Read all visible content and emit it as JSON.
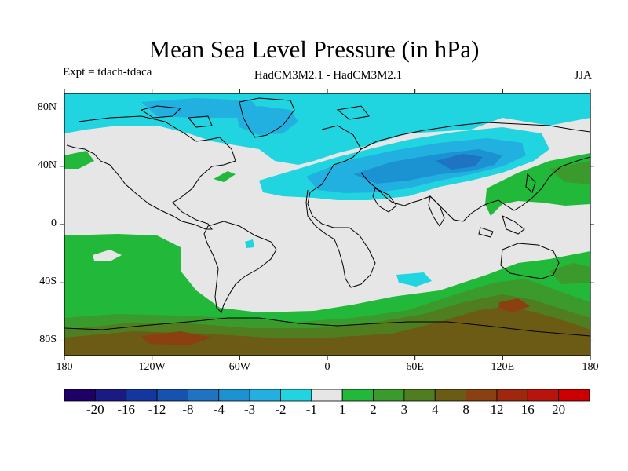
{
  "title": "Mean Sea Level Pressure (in hPa)",
  "experiment": "Expt = tdach-tdaca",
  "model": "HadCM3M2.1 - HadCM3M2.1",
  "season": "JJA",
  "lat_labels": [
    "80N",
    "40N",
    "0",
    "40S",
    "80S"
  ],
  "lat_values": [
    80,
    40,
    0,
    -40,
    -80
  ],
  "lon_labels": [
    "180",
    "120W",
    "60W",
    "0",
    "60E",
    "120E",
    "180"
  ],
  "lon_values": [
    -180,
    -120,
    -60,
    0,
    60,
    120,
    180
  ],
  "colorbar": {
    "colors": [
      "#1f0066",
      "#1a1a85",
      "#1436a0",
      "#1653b0",
      "#1f73c2",
      "#1b92d2",
      "#22b0e0",
      "#20d4e0",
      "#e6e6e6",
      "#22b83a",
      "#3a9a2c",
      "#4f7d1f",
      "#6b5b14",
      "#8a4010",
      "#a0260e",
      "#b8140c",
      "#cc0000"
    ],
    "labels": [
      "-20",
      "-16",
      "-12",
      "-8",
      "-4",
      "-3",
      "-2",
      "-1",
      "1",
      "2",
      "3",
      "4",
      "8",
      "12",
      "16",
      "20"
    ]
  },
  "map_colors": {
    "background": "#e6e6e6",
    "light_blue": "#20d4e0",
    "mid_blue": "#22b0e0",
    "blue": "#1b92d2",
    "deep_blue": "#1f73c2",
    "green": "#22b83a",
    "dark_green": "#3a9a2c",
    "olive": "#4f7d1f",
    "brown": "#6b5b14",
    "dark_brown": "#8a4010",
    "coast": "#000000"
  }
}
